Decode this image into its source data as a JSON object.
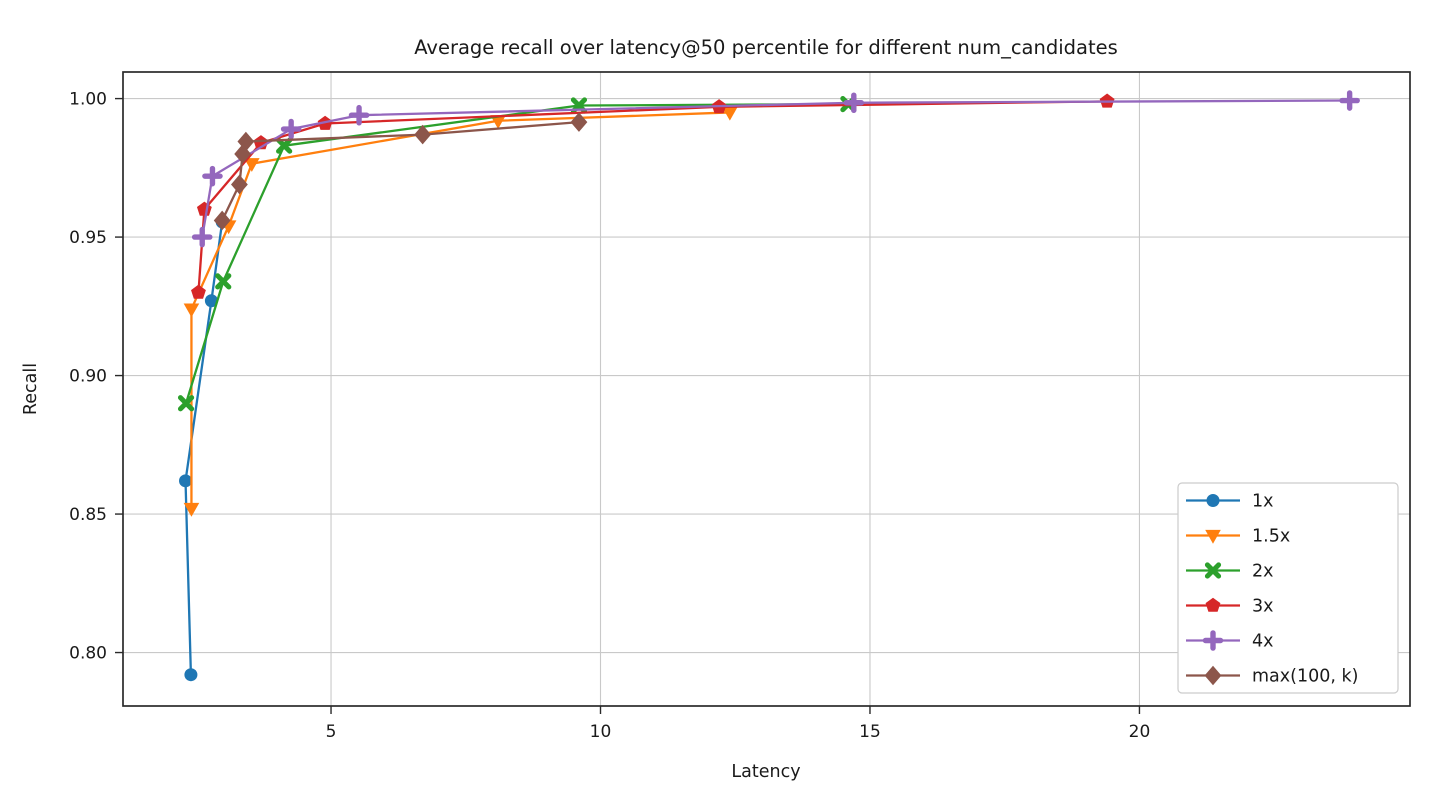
{
  "chart_data": {
    "type": "line",
    "title": "Average recall over latency@50 percentile for different num_candidates",
    "xlabel": "Latency",
    "ylabel": "Recall",
    "xlim": [
      1.14,
      25.02
    ],
    "ylim": [
      0.7807,
      1.0096
    ],
    "grid": true,
    "legend_position": "lower right",
    "x_ticks": {
      "values": [
        5,
        10,
        15,
        20
      ],
      "labels": [
        "5",
        "10",
        "15",
        "20"
      ]
    },
    "y_ticks": {
      "values": [
        0.8,
        0.85,
        0.9,
        0.95,
        1.0
      ],
      "labels": [
        "0.80",
        "0.85",
        "0.90",
        "0.95",
        "1.00"
      ]
    },
    "series": [
      {
        "name": "1x",
        "color": "#1f77b4",
        "marker": "circle",
        "points": [
          [
            2.4,
            0.792
          ],
          [
            2.3,
            0.862
          ],
          [
            2.78,
            0.927
          ],
          [
            2.98,
            0.9555
          ]
        ]
      },
      {
        "name": "1.5x",
        "color": "#ff7f0e",
        "marker": "triangle-down",
        "points": [
          [
            2.41,
            0.852
          ],
          [
            2.41,
            0.924
          ],
          [
            3.1,
            0.954
          ],
          [
            3.53,
            0.9765
          ],
          [
            8.1,
            0.992
          ],
          [
            12.4,
            0.995
          ]
        ]
      },
      {
        "name": "2x",
        "color": "#2ca02c",
        "marker": "x",
        "points": [
          [
            2.31,
            0.89
          ],
          [
            3.0,
            0.934
          ],
          [
            4.13,
            0.983
          ],
          [
            9.6,
            0.9975
          ],
          [
            14.6,
            0.998
          ]
        ]
      },
      {
        "name": "3x",
        "color": "#d62728",
        "marker": "pentagon",
        "points": [
          [
            2.54,
            0.93
          ],
          [
            2.65,
            0.96
          ],
          [
            3.7,
            0.984
          ],
          [
            4.89,
            0.991
          ],
          [
            12.2,
            0.997
          ],
          [
            19.4,
            0.999
          ]
        ]
      },
      {
        "name": "4x",
        "color": "#9467bd",
        "marker": "plus",
        "points": [
          [
            2.61,
            0.95
          ],
          [
            2.8,
            0.972
          ],
          [
            4.26,
            0.989
          ],
          [
            5.52,
            0.994
          ],
          [
            14.7,
            0.9985
          ],
          [
            23.9,
            0.9993
          ]
        ]
      },
      {
        "name": "max(100, k)",
        "color": "#8c564b",
        "marker": "diamond",
        "points": [
          [
            2.98,
            0.956
          ],
          [
            3.3,
            0.969
          ],
          [
            3.36,
            0.98
          ],
          [
            3.42,
            0.9845
          ],
          [
            6.7,
            0.987
          ],
          [
            9.6,
            0.9915
          ]
        ]
      }
    ]
  }
}
